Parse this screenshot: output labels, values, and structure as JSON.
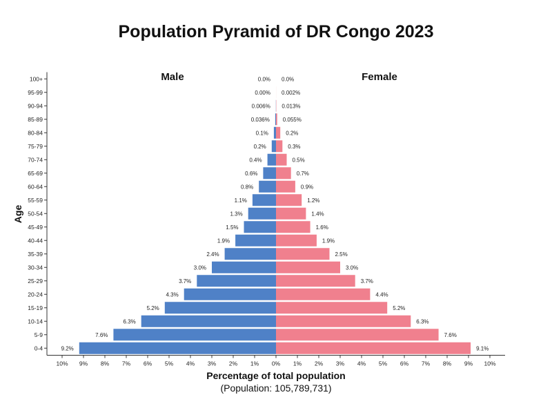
{
  "chart_data": {
    "type": "bar",
    "orientation": "horizontal-pyramid",
    "title": "Population Pyramid of DR Congo 2023",
    "xlabel": "Percentage of total population",
    "subtitle": "(Population: 105,789,731)",
    "ylabel": "Age",
    "xlim": [
      -10,
      10
    ],
    "x_ticks": [
      "10%",
      "9%",
      "8%",
      "7%",
      "6%",
      "5%",
      "4%",
      "3%",
      "2%",
      "1%",
      "0%",
      "1%",
      "2%",
      "3%",
      "4%",
      "5%",
      "6%",
      "7%",
      "8%",
      "9%",
      "10%"
    ],
    "categories": [
      "100+",
      "95-99",
      "90-94",
      "85-89",
      "80-84",
      "75-79",
      "70-74",
      "65-69",
      "60-64",
      "55-59",
      "50-54",
      "45-49",
      "40-44",
      "35-39",
      "30-34",
      "25-29",
      "20-24",
      "15-19",
      "10-14",
      "5-9",
      "0-4"
    ],
    "series": [
      {
        "name": "Male",
        "color": "#4f81c7",
        "values": [
          0.0,
          0.0,
          0.006,
          0.036,
          0.1,
          0.2,
          0.4,
          0.6,
          0.8,
          1.1,
          1.3,
          1.5,
          1.9,
          2.4,
          3.0,
          3.7,
          4.3,
          5.2,
          6.3,
          7.6,
          9.2
        ],
        "labels": [
          "0.0%",
          "0.00%",
          "0.006%",
          "0.036%",
          "0.1%",
          "0.2%",
          "0.4%",
          "0.6%",
          "0.8%",
          "1.1%",
          "1.3%",
          "1.5%",
          "1.9%",
          "2.4%",
          "3.0%",
          "3.7%",
          "4.3%",
          "5.2%",
          "6.3%",
          "7.6%",
          "9.2%"
        ]
      },
      {
        "name": "Female",
        "color": "#f0808e",
        "values": [
          0.0,
          0.002,
          0.013,
          0.055,
          0.2,
          0.3,
          0.5,
          0.7,
          0.9,
          1.2,
          1.4,
          1.6,
          1.9,
          2.5,
          3.0,
          3.7,
          4.4,
          5.2,
          6.3,
          7.6,
          9.1
        ],
        "labels": [
          "0.0%",
          "0.002%",
          "0.013%",
          "0.055%",
          "0.2%",
          "0.3%",
          "0.5%",
          "0.7%",
          "0.9%",
          "1.2%",
          "1.4%",
          "1.6%",
          "1.9%",
          "2.5%",
          "3.0%",
          "3.7%",
          "4.4%",
          "5.2%",
          "6.3%",
          "7.6%",
          "9.1%"
        ]
      }
    ],
    "legend": "top"
  }
}
